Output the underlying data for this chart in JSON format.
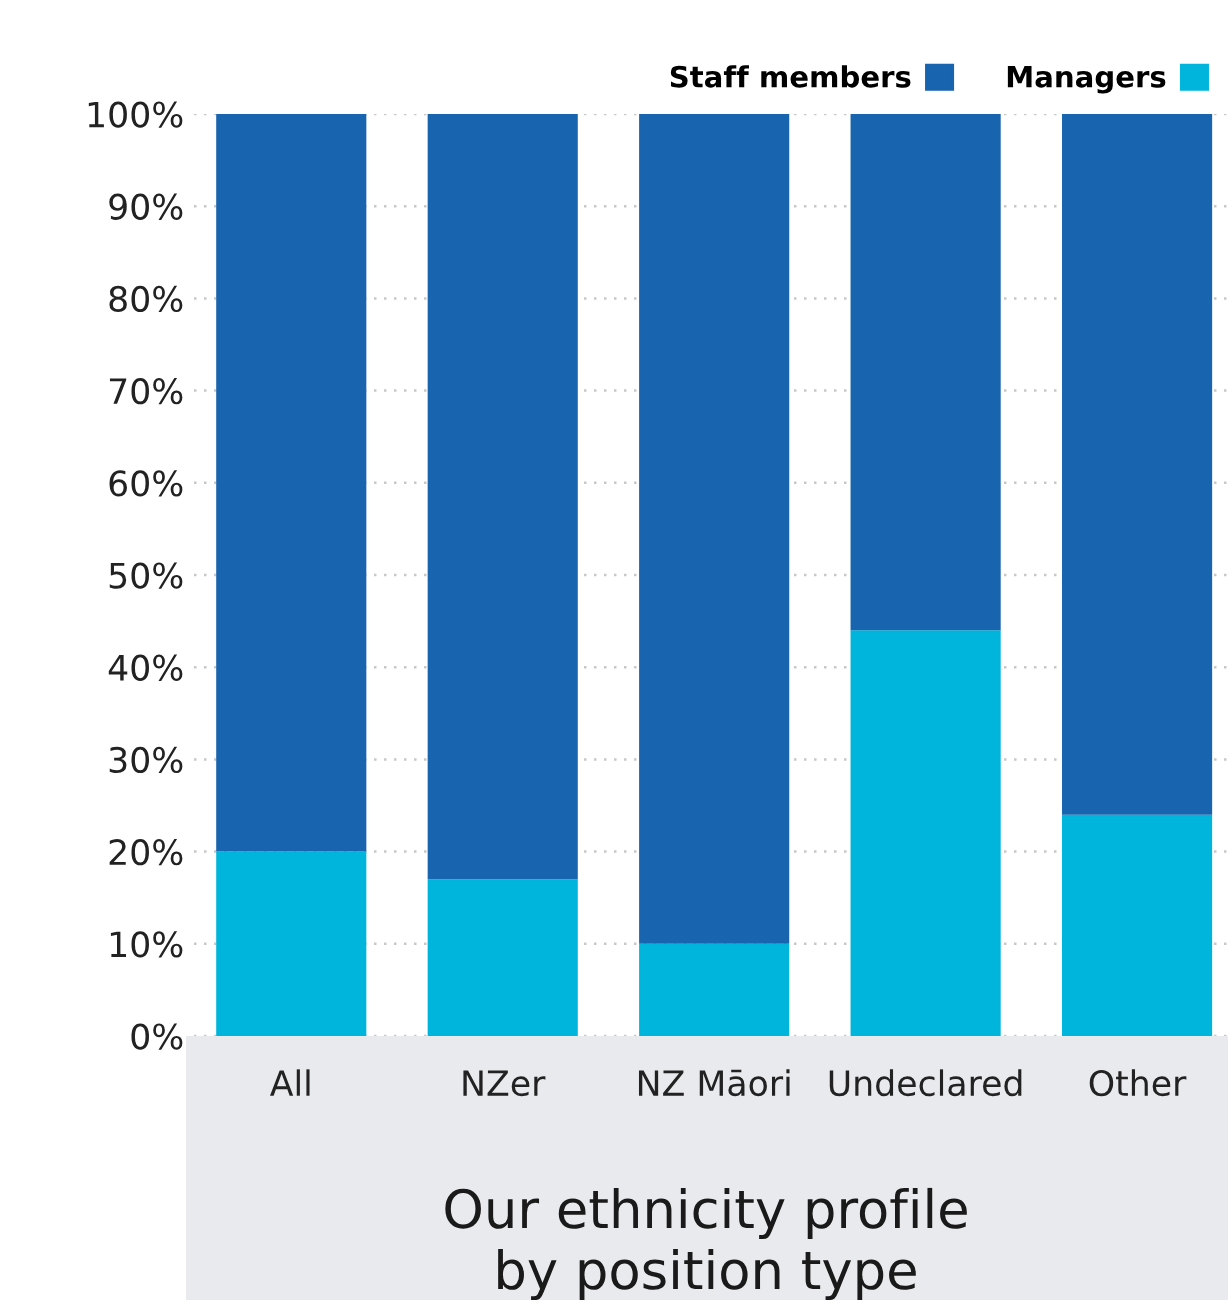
{
  "chart_data": {
    "type": "bar",
    "title": "Our ethnicity profile\nby position type",
    "categories": [
      "All",
      "NZer",
      "NZ Māori",
      "Undeclared",
      "Other"
    ],
    "series": [
      {
        "name": "Managers",
        "color": "#00b5dc",
        "values": [
          20,
          17,
          10,
          44,
          24
        ]
      },
      {
        "name": "Staff members",
        "color": "#1864ae",
        "values": [
          80,
          83,
          90,
          56,
          76
        ]
      }
    ],
    "stacked": true,
    "ylim": [
      0,
      100
    ],
    "yticks": [
      {
        "value": 0,
        "label": "0%"
      },
      {
        "value": 10,
        "label": "10%"
      },
      {
        "value": 20,
        "label": "20%"
      },
      {
        "value": 30,
        "label": "30%"
      },
      {
        "value": 40,
        "label": "40%"
      },
      {
        "value": 50,
        "label": "50%"
      },
      {
        "value": 60,
        "label": "60%"
      },
      {
        "value": 70,
        "label": "70%"
      },
      {
        "value": 80,
        "label": "80%"
      },
      {
        "value": 90,
        "label": "90%"
      },
      {
        "value": 100,
        "label": "100%"
      }
    ],
    "grid": "y",
    "legend": "top right"
  }
}
